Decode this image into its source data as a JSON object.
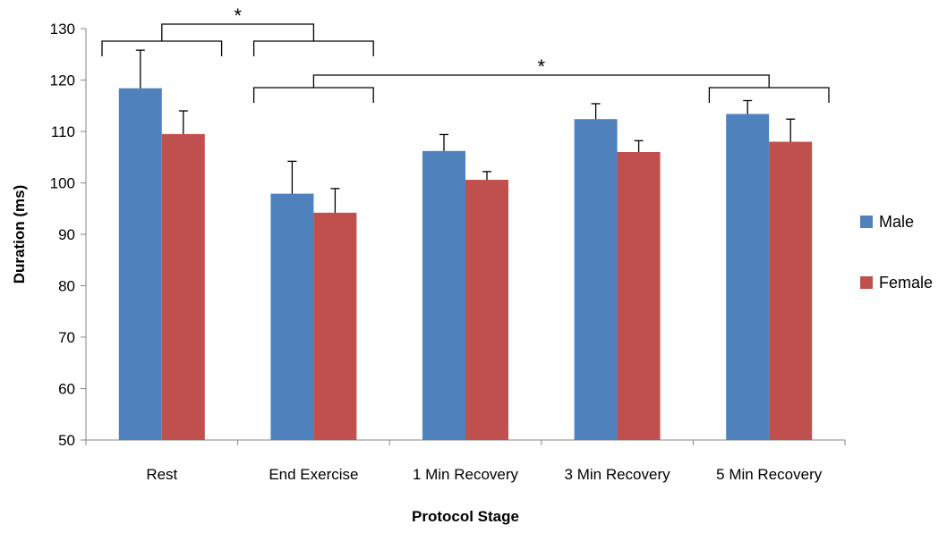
{
  "chart_data": {
    "type": "bar",
    "title": "",
    "xlabel": "Protocol Stage",
    "ylabel": "Duration (ms)",
    "ylim": [
      50,
      130
    ],
    "yticks": [
      50,
      60,
      70,
      80,
      90,
      100,
      110,
      120,
      130
    ],
    "grid": false,
    "legend_position": "right",
    "categories": [
      "Rest",
      "End Exercise",
      "1 Min Recovery",
      "3 Min Recovery",
      "5 Min Recovery"
    ],
    "series": [
      {
        "name": "Male",
        "color": "#4f81bd",
        "values": [
          118.4,
          97.9,
          106.2,
          112.4,
          113.4
        ],
        "error": [
          7.4,
          6.3,
          3.2,
          3.0,
          2.6
        ]
      },
      {
        "name": "Female",
        "color": "#c0504d",
        "values": [
          109.5,
          94.2,
          100.6,
          106.0,
          108.0
        ],
        "error": [
          4.5,
          4.7,
          1.6,
          2.2,
          4.4
        ]
      }
    ],
    "annotations": [
      {
        "text": "*",
        "comparison": [
          "Rest",
          "End Exercise"
        ]
      },
      {
        "text": "*",
        "comparison": [
          "End Exercise",
          "5 Min Recovery"
        ]
      }
    ]
  }
}
